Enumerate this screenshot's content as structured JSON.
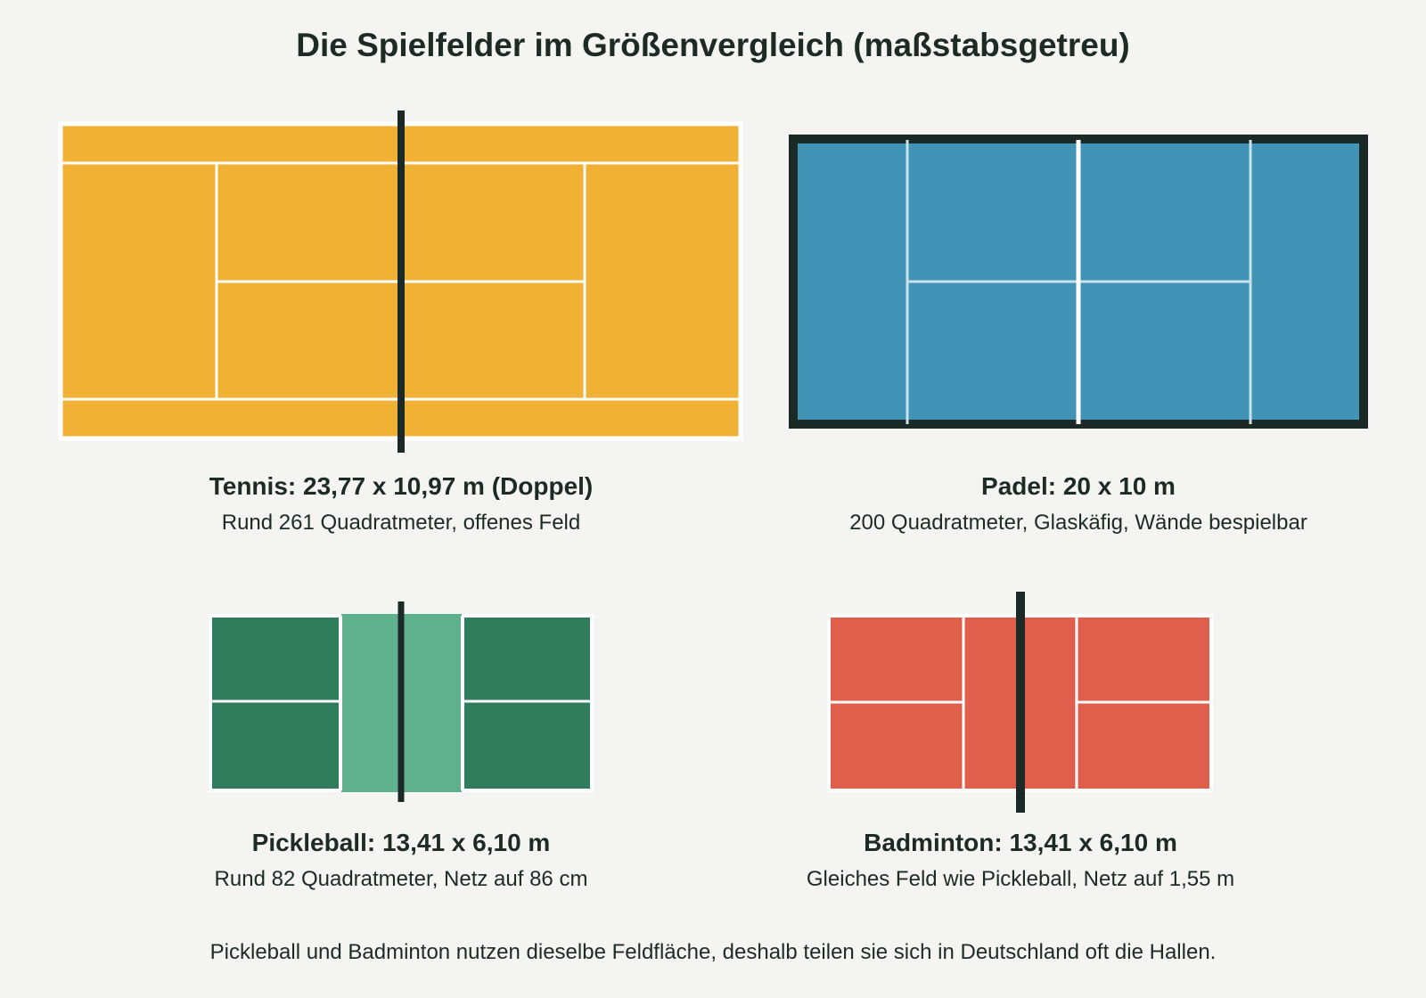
{
  "title": "Die Spielfelder im Größenvergleich (maßstabsgetreu)",
  "colors": {
    "tennis": "#f0b135",
    "padel": "#4194b6",
    "padel_frame": "#1c2a27",
    "pickleball": "#2f7d5d",
    "pickleball_kitchen": "#5fb08c",
    "badminton": "#e05e4c",
    "net": "#1c2a27",
    "lines": "#ffffff"
  },
  "courts": [
    {
      "id": "tennis",
      "heading": "Tennis: 23,77 x 10,97 m (Doppel)",
      "subtitle": "Rund 261 Quadratmeter, offenes Feld"
    },
    {
      "id": "padel",
      "heading": "Padel: 20 x 10 m",
      "subtitle": "200 Quadratmeter, Glaskäfig, Wände bespielbar"
    },
    {
      "id": "pickleball",
      "heading": "Pickleball: 13,41 x 6,10 m",
      "subtitle": "Rund 82 Quadratmeter, Netz auf 86 cm"
    },
    {
      "id": "badminton",
      "heading": "Badminton: 13,41 x 6,10 m",
      "subtitle": "Gleiches Feld wie Pickleball, Netz auf 1,55 m"
    }
  ],
  "footer": "Pickleball und Badminton nutzen dieselbe Feldfläche, deshalb teilen sie sich in Deutschland oft die Hallen."
}
